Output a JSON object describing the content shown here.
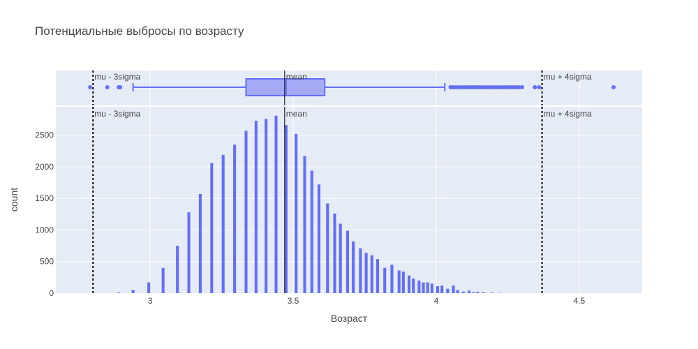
{
  "title": "Потенциальные выбросы по возрасту",
  "colors": {
    "background": "#ffffff",
    "plot_bg": "#e5ecf6",
    "grid": "#ffffff",
    "bar": "#636efa",
    "box_fill": "#a4aaf5",
    "text": "#444444",
    "line": "#000000"
  },
  "chart_data": [
    {
      "type": "box",
      "orientation": "horizontal",
      "x_range": [
        2.67,
        4.72
      ],
      "q1": 3.335,
      "median": 3.475,
      "q3": 3.61,
      "lower_fence": 2.94,
      "upper_fence": 4.03,
      "outliers": [
        2.79,
        2.85,
        2.89,
        2.895,
        4.05,
        4.06,
        4.07,
        4.08,
        4.09,
        4.1,
        4.11,
        4.12,
        4.13,
        4.14,
        4.15,
        4.16,
        4.17,
        4.18,
        4.19,
        4.2,
        4.21,
        4.22,
        4.23,
        4.24,
        4.25,
        4.26,
        4.27,
        4.28,
        4.29,
        4.3,
        4.345,
        4.36,
        4.62
      ],
      "grid": true
    },
    {
      "type": "bar",
      "subtype": "histogram",
      "xlabel": "Возраст",
      "ylabel": "count",
      "x_range": [
        2.67,
        4.72
      ],
      "ylim": [
        0,
        2950
      ],
      "x_ticks": [
        3,
        3.5,
        4,
        4.5
      ],
      "x_tick_labels": [
        "3",
        "3.5",
        "4",
        "4.5"
      ],
      "y_ticks": [
        0,
        500,
        1000,
        1500,
        2000,
        2500
      ],
      "y_tick_labels": [
        "0",
        "500",
        "1000",
        "1500",
        "2000",
        "2500"
      ],
      "bin_width": 0.01,
      "x": [
        2.89,
        2.94,
        2.995,
        3.045,
        3.095,
        3.135,
        3.175,
        3.215,
        3.255,
        3.295,
        3.335,
        3.37,
        3.405,
        3.44,
        3.475,
        3.51,
        3.54,
        3.565,
        3.59,
        3.62,
        3.645,
        3.665,
        3.69,
        3.71,
        3.735,
        3.755,
        3.775,
        3.795,
        3.82,
        3.845,
        3.87,
        3.885,
        3.905,
        3.92,
        3.94,
        3.955,
        3.97,
        3.985,
        4.005,
        4.02,
        4.04,
        4.06,
        4.075,
        4.095,
        4.115,
        4.13,
        4.145,
        4.165,
        4.195,
        4.22
      ],
      "y": [
        10,
        50,
        170,
        400,
        750,
        1280,
        1570,
        2060,
        2190,
        2350,
        2570,
        2730,
        2760,
        2810,
        2660,
        2520,
        2170,
        1940,
        1720,
        1420,
        1260,
        1100,
        990,
        820,
        710,
        640,
        600,
        540,
        400,
        450,
        360,
        340,
        280,
        230,
        200,
        170,
        170,
        150,
        110,
        120,
        70,
        120,
        50,
        25,
        40,
        15,
        20,
        15,
        10,
        5
      ],
      "grid": true
    }
  ],
  "shapes": [
    {
      "label": "mu - 3sigma",
      "x": 2.8,
      "style": "dotted",
      "width": 2
    },
    {
      "label": "mean",
      "x": 3.47,
      "style": "solid",
      "width": 1
    },
    {
      "label": "mu + 4sigma",
      "x": 4.37,
      "style": "dotted",
      "width": 2
    }
  ]
}
